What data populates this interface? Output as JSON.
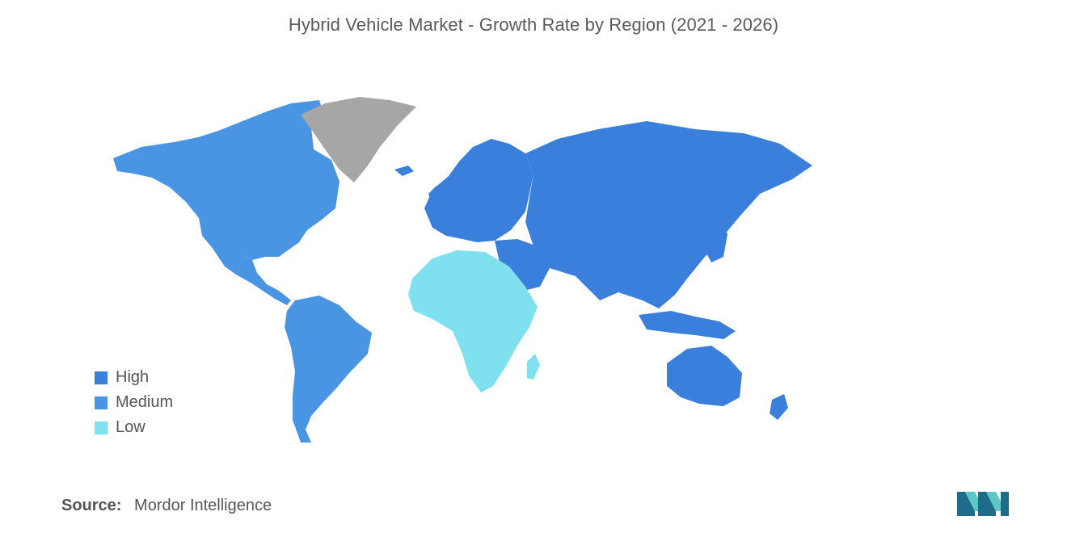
{
  "title": "Hybrid Vehicle Market - Growth Rate by Region (2021 - 2026)",
  "legend": [
    {
      "label": "High",
      "color": "#3a7fdc"
    },
    {
      "label": "Medium",
      "color": "#4a95e3"
    },
    {
      "label": "Low",
      "color": "#7fe0ef"
    }
  ],
  "no_data_color": "#a6a6a6",
  "regions": {
    "High": [
      "Europe",
      "Russia",
      "Asia",
      "Middle East",
      "Australia",
      "New Zealand"
    ],
    "Medium": [
      "North America",
      "Central America",
      "South America"
    ],
    "Low": [
      "Africa"
    ]
  },
  "source": {
    "key": "Source:",
    "value": "Mordor Intelligence"
  },
  "logo": {
    "icon": "mordor-intelligence-logo"
  }
}
